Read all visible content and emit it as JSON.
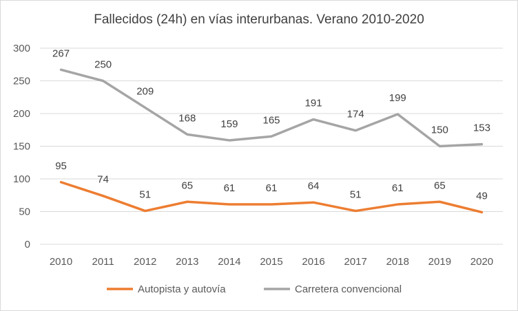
{
  "chart_data": {
    "type": "line",
    "title": "Fallecidos (24h) en vías interurbanas. Verano 2010-2020",
    "xlabel": "",
    "ylabel": "",
    "categories": [
      "2010",
      "2011",
      "2012",
      "2013",
      "2014",
      "2015",
      "2016",
      "2017",
      "2018",
      "2019",
      "2020"
    ],
    "ylim": [
      0,
      300
    ],
    "yticks": [
      0,
      50,
      100,
      150,
      200,
      250,
      300
    ],
    "grid": true,
    "legend_position": "bottom",
    "series": [
      {
        "name": "Autopista y autovía",
        "color": "#ed7d31",
        "values": [
          95,
          74,
          51,
          65,
          61,
          61,
          64,
          51,
          61,
          65,
          49
        ]
      },
      {
        "name": "Carretera convencional",
        "color": "#a5a5a5",
        "values": [
          267,
          250,
          209,
          168,
          159,
          165,
          191,
          174,
          199,
          150,
          153
        ]
      }
    ]
  }
}
